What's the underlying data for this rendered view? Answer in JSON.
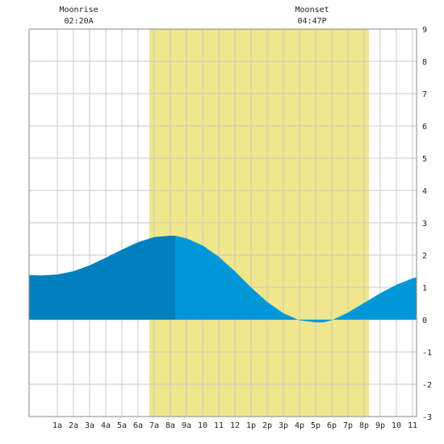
{
  "annotations": {
    "moonrise": {
      "label": "Moonrise",
      "time": "02:20A",
      "hour": 2.33
    },
    "moonset": {
      "label": "Moonset",
      "time": "04:47P",
      "hour": 16.78
    }
  },
  "chart_data": {
    "type": "area",
    "title": "",
    "xlabel": "",
    "ylabel": "",
    "xlim": [
      -0.75,
      23.25
    ],
    "ylim": [
      -3,
      9
    ],
    "x_tick_labels": [
      {
        "hour": 1,
        "label": "1a"
      },
      {
        "hour": 2,
        "label": "2a"
      },
      {
        "hour": 3,
        "label": "3a"
      },
      {
        "hour": 4,
        "label": "4a"
      },
      {
        "hour": 5,
        "label": "5a"
      },
      {
        "hour": 6,
        "label": "6a"
      },
      {
        "hour": 7,
        "label": "7a"
      },
      {
        "hour": 8,
        "label": "8a"
      },
      {
        "hour": 9,
        "label": "9a"
      },
      {
        "hour": 10,
        "label": "10"
      },
      {
        "hour": 11,
        "label": "11"
      },
      {
        "hour": 12,
        "label": "12"
      },
      {
        "hour": 13,
        "label": "1p"
      },
      {
        "hour": 14,
        "label": "2p"
      },
      {
        "hour": 15,
        "label": "3p"
      },
      {
        "hour": 16,
        "label": "4p"
      },
      {
        "hour": 17,
        "label": "5p"
      },
      {
        "hour": 18,
        "label": "6p"
      },
      {
        "hour": 19,
        "label": "7p"
      },
      {
        "hour": 20,
        "label": "8p"
      },
      {
        "hour": 21,
        "label": "9p"
      },
      {
        "hour": 22,
        "label": "10"
      },
      {
        "hour": 23,
        "label": "11"
      }
    ],
    "y_ticks": [
      -3,
      -2,
      -1,
      0,
      1,
      2,
      3,
      4,
      5,
      6,
      7,
      8,
      9
    ],
    "daylight": {
      "start_hour": 6.7,
      "end_hour": 20.3
    },
    "current_time_hour": 8.3,
    "series": [
      {
        "x": [
          -0.75,
          0,
          1,
          2,
          3,
          4,
          5,
          6,
          7,
          8,
          8.3,
          9,
          10,
          11,
          12,
          13,
          14,
          15,
          16,
          17,
          17.5,
          18,
          19,
          20,
          21,
          22,
          23,
          23.25
        ],
        "values": [
          1.38,
          1.37,
          1.4,
          1.5,
          1.68,
          1.92,
          2.17,
          2.4,
          2.56,
          2.6,
          2.6,
          2.52,
          2.3,
          1.95,
          1.5,
          1.0,
          0.55,
          0.2,
          -0.02,
          -0.08,
          -0.08,
          -0.02,
          0.22,
          0.52,
          0.82,
          1.08,
          1.28,
          1.32
        ]
      }
    ],
    "colors": {
      "daylight": "#f0e68c",
      "past_area": "#0080bc",
      "future_area": "#0098d8",
      "grid": "#c8c8c8",
      "frame": "#888888"
    },
    "grid": true
  }
}
